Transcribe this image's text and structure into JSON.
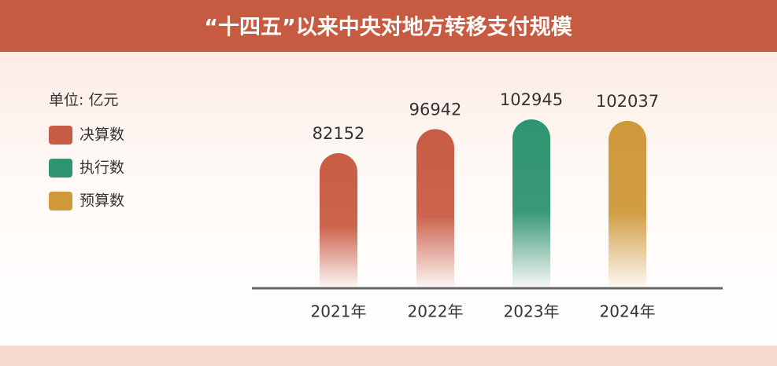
{
  "chart_data": {
    "type": "bar",
    "title": "“十四五”以来中央对地方转移支付规模",
    "unit": "单位: 亿元",
    "categories": [
      "2021年",
      "2022年",
      "2023年",
      "2024年"
    ],
    "series": [
      {
        "name": "决算数",
        "color": "#c95c45",
        "values": [
          82152,
          96942,
          null,
          null
        ]
      },
      {
        "name": "执行数",
        "color": "#2f9471",
        "values": [
          null,
          null,
          102945,
          null
        ]
      },
      {
        "name": "预算数",
        "color": "#cf983a",
        "values": [
          null,
          null,
          null,
          102037
        ]
      }
    ]
  }
}
